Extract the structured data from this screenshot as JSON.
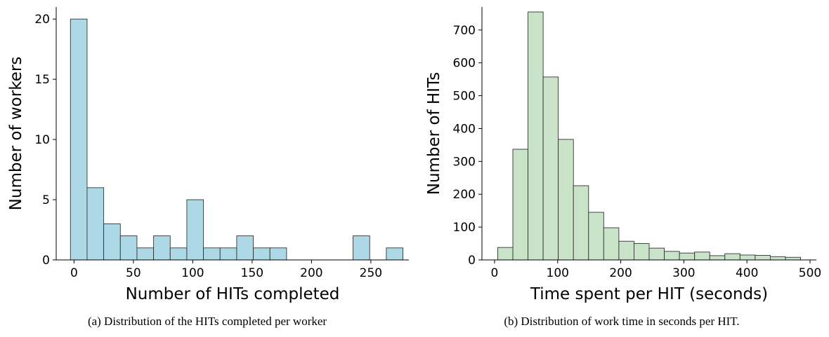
{
  "chart_data": [
    {
      "type": "bar",
      "caption": "(a) Distribution of the HITs completed per worker",
      "xlabel": "Number of HITs completed",
      "ylabel": "Number of workers",
      "xlim": [
        -15,
        282
      ],
      "ylim": [
        0,
        21
      ],
      "xticks": [
        0,
        50,
        100,
        150,
        200,
        250
      ],
      "yticks": [
        0,
        5,
        10,
        15,
        20
      ],
      "color": "#add8e6",
      "edgecolor": "#333333",
      "bin_edges": [
        -3,
        11,
        25,
        39,
        53,
        67,
        81,
        95,
        109,
        123,
        137,
        151,
        165,
        179,
        193,
        207,
        221,
        235,
        249,
        263,
        277
      ],
      "values": [
        20,
        6,
        3,
        2,
        1,
        2,
        1,
        5,
        1,
        1,
        2,
        1,
        1,
        0,
        0,
        0,
        0,
        2,
        0,
        1
      ],
      "grid": false,
      "spines": "left-bottom"
    },
    {
      "type": "bar",
      "caption": "(b) Distribution of work time in seconds per HIT.",
      "xlabel": "Time spent per HIT (seconds)",
      "ylabel": "Number of HITs",
      "xlim": [
        -20,
        510
      ],
      "ylim": [
        0,
        770
      ],
      "xticks": [
        0,
        100,
        200,
        300,
        400,
        500
      ],
      "yticks": [
        0,
        100,
        200,
        300,
        400,
        500,
        600,
        700
      ],
      "color": "#c9e3c9",
      "edgecolor": "#333333",
      "bin_edges": [
        5,
        29,
        53,
        77,
        101,
        125,
        149,
        173,
        197,
        221,
        245,
        269,
        293,
        317,
        341,
        365,
        389,
        413,
        437,
        461,
        485
      ],
      "values": [
        38,
        337,
        755,
        557,
        367,
        226,
        145,
        98,
        57,
        50,
        36,
        26,
        21,
        24,
        13,
        19,
        15,
        14,
        10,
        8
      ],
      "grid": false,
      "spines": "left-bottom"
    }
  ]
}
